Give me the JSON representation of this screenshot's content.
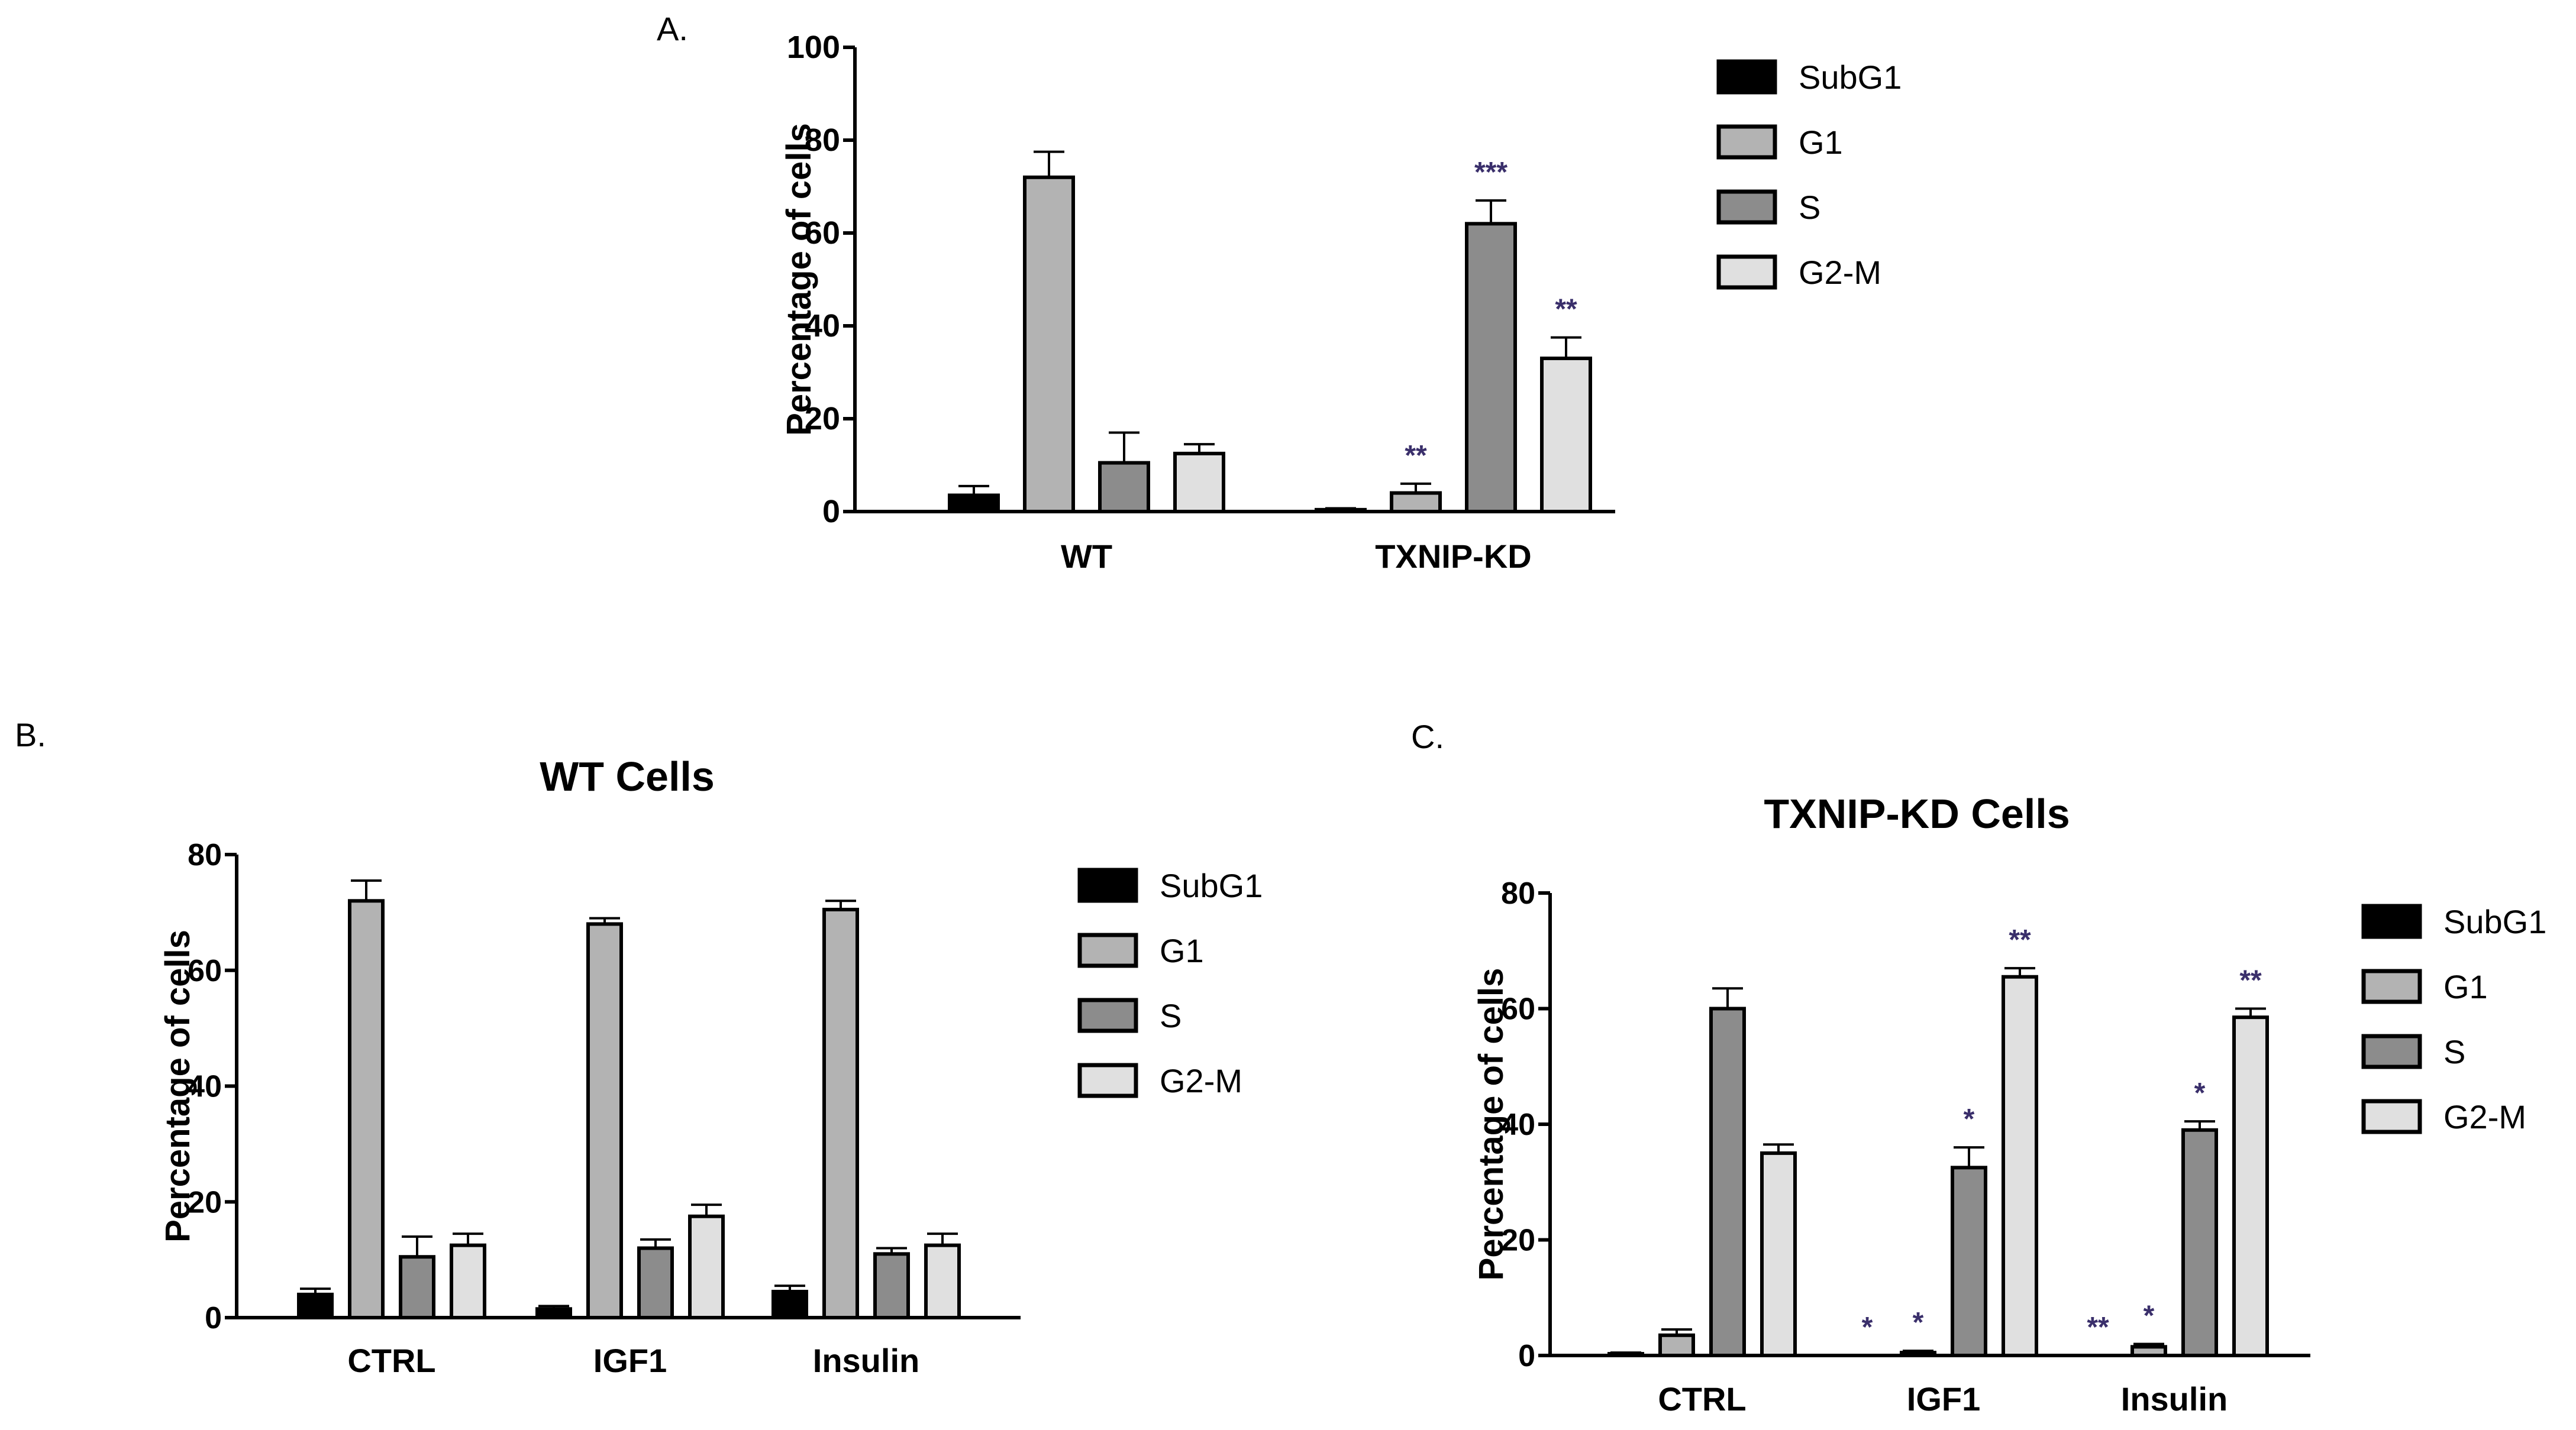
{
  "colors": {
    "SubG1": "#000000",
    "G1": "#b3b3b3",
    "S": "#8c8c8c",
    "G2-M": "#e0e0e0",
    "stars": "#3a2f6b"
  },
  "chart_data": [
    {
      "id": "A",
      "panel_label": "A.",
      "type": "bar",
      "title": "",
      "ylabel": "Percentage of cells",
      "ylim": [
        0,
        100
      ],
      "yticks": [
        "0",
        "20",
        "40",
        "60",
        "80",
        "100"
      ],
      "categories": [
        "WT",
        "TXNIP-KD"
      ],
      "legend": [
        "SubG1",
        "G1",
        "S",
        "G2-M"
      ],
      "series": [
        {
          "name": "SubG1",
          "values": [
            3.5,
            0.4
          ],
          "errors": [
            2.0,
            0.3
          ],
          "stars": [
            "",
            ""
          ]
        },
        {
          "name": "G1",
          "values": [
            72,
            4.0
          ],
          "errors": [
            5.5,
            2.0
          ],
          "stars": [
            "",
            "**"
          ]
        },
        {
          "name": "S",
          "values": [
            10.5,
            62
          ],
          "errors": [
            6.5,
            5.0
          ],
          "stars": [
            "",
            "***"
          ]
        },
        {
          "name": "G2-M",
          "values": [
            12.5,
            33
          ],
          "errors": [
            2.0,
            4.5
          ],
          "stars": [
            "",
            "**"
          ]
        }
      ]
    },
    {
      "id": "B",
      "panel_label": "B.",
      "type": "bar",
      "title": "WT Cells",
      "ylabel": "Percentage of cells",
      "ylim": [
        0,
        80
      ],
      "yticks": [
        "0",
        "20",
        "40",
        "60",
        "80"
      ],
      "categories": [
        "CTRL",
        "IGF1",
        "Insulin"
      ],
      "legend": [
        "SubG1",
        "G1",
        "S",
        "G2-M"
      ],
      "series": [
        {
          "name": "SubG1",
          "values": [
            4.0,
            1.5,
            4.5
          ],
          "errors": [
            1.0,
            0.5,
            1.0
          ],
          "stars": [
            "",
            "",
            ""
          ]
        },
        {
          "name": "G1",
          "values": [
            72,
            68,
            70.5
          ],
          "errors": [
            3.5,
            1.0,
            1.5
          ],
          "stars": [
            "",
            "",
            ""
          ]
        },
        {
          "name": "S",
          "values": [
            10.5,
            12,
            11
          ],
          "errors": [
            3.5,
            1.5,
            1.0
          ],
          "stars": [
            "",
            "",
            ""
          ]
        },
        {
          "name": "G2-M",
          "values": [
            12.5,
            17.5,
            12.5
          ],
          "errors": [
            2.0,
            2.0,
            2.0
          ],
          "stars": [
            "",
            "",
            ""
          ]
        }
      ]
    },
    {
      "id": "C",
      "panel_label": "C.",
      "type": "bar",
      "title": "TXNIP-KD Cells",
      "ylabel": "Percentage of cells",
      "ylim": [
        0,
        80
      ],
      "yticks": [
        "0",
        "20",
        "40",
        "60",
        "80"
      ],
      "categories": [
        "CTRL",
        "IGF1",
        "Insulin"
      ],
      "legend": [
        "SubG1",
        "G1",
        "S",
        "G2-M"
      ],
      "series": [
        {
          "name": "SubG1",
          "values": [
            0.3,
            0.0,
            0.0
          ],
          "errors": [
            0.2,
            0.0,
            0.0
          ],
          "stars": [
            "",
            "*",
            "**"
          ]
        },
        {
          "name": "G1",
          "values": [
            3.5,
            0.5,
            1.5
          ],
          "errors": [
            1.0,
            0.3,
            0.5
          ],
          "stars": [
            "",
            "*",
            "*"
          ]
        },
        {
          "name": "S",
          "values": [
            60,
            32.5,
            39
          ],
          "errors": [
            3.5,
            3.5,
            1.5
          ],
          "stars": [
            "",
            "*",
            "*"
          ]
        },
        {
          "name": "G2-M",
          "values": [
            35,
            65.5,
            58.5
          ],
          "errors": [
            1.5,
            1.5,
            1.5
          ],
          "stars": [
            "",
            "**",
            "**"
          ]
        }
      ]
    }
  ]
}
